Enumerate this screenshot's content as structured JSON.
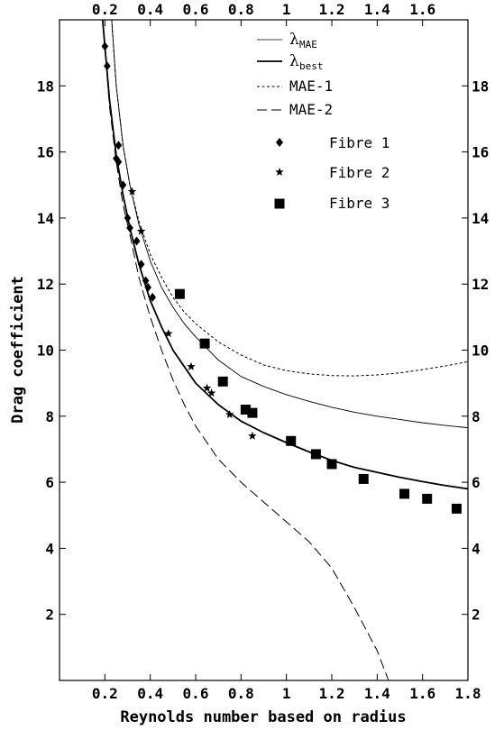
{
  "chart_data": {
    "type": "scatter",
    "xlabel": "Reynolds number based on radius",
    "ylabel": "Drag coefficient",
    "xlim": [
      0,
      1.8
    ],
    "ylim": [
      0,
      20
    ],
    "x_ticks": [
      0.2,
      0.4,
      0.6,
      0.8,
      1,
      1.2,
      1.4,
      1.6,
      1.8
    ],
    "x_tick_labels": [
      "0.2",
      "0.4",
      "0.6",
      "0.8",
      "1",
      "1.2",
      "1.4",
      "1.6",
      "1.8"
    ],
    "top_x_ticks": [
      0.2,
      0.4,
      0.6,
      0.8,
      1,
      1.2,
      1.4,
      1.6
    ],
    "top_x_tick_labels": [
      "0.2",
      "0.4",
      "0.6",
      "0.8",
      "1",
      "1.2",
      "1.4",
      "1.6"
    ],
    "y_ticks": [
      2,
      4,
      6,
      8,
      10,
      12,
      14,
      16,
      18
    ],
    "y_tick_labels": [
      "2",
      "4",
      "6",
      "8",
      "10",
      "12",
      "14",
      "16",
      "18"
    ],
    "grid": false,
    "legend_position": "top-right",
    "legend": {
      "lambda_symbol": "λ",
      "mae_sub": "MAE",
      "best_sub": "best",
      "mae1": "MAE-1",
      "mae2": "MAE-2",
      "fibre1": "Fibre 1",
      "fibre2": "Fibre 2",
      "fibre3": "Fibre 3"
    },
    "curves": [
      {
        "key": "lambda_mae",
        "style": "thin-solid",
        "x": [
          0.23,
          0.25,
          0.28,
          0.31,
          0.35,
          0.4,
          0.45,
          0.5,
          0.55,
          0.6,
          0.7,
          0.8,
          0.9,
          1.0,
          1.1,
          1.2,
          1.3,
          1.4,
          1.5,
          1.6,
          1.7,
          1.8
        ],
        "y": [
          20.0,
          18.0,
          16.2,
          15.0,
          13.8,
          12.7,
          11.9,
          11.3,
          10.8,
          10.4,
          9.7,
          9.2,
          8.9,
          8.65,
          8.45,
          8.27,
          8.12,
          8.0,
          7.9,
          7.8,
          7.72,
          7.65
        ]
      },
      {
        "key": "lambda_best",
        "style": "thick-solid",
        "x": [
          0.19,
          0.2,
          0.22,
          0.25,
          0.28,
          0.31,
          0.35,
          0.4,
          0.45,
          0.5,
          0.55,
          0.6,
          0.7,
          0.8,
          0.9,
          1.0,
          1.1,
          1.2,
          1.3,
          1.4,
          1.5,
          1.6,
          1.7,
          1.8
        ],
        "y": [
          20.0,
          19.2,
          17.6,
          15.9,
          14.7,
          13.7,
          12.6,
          11.5,
          10.7,
          10.0,
          9.5,
          9.0,
          8.35,
          7.85,
          7.5,
          7.2,
          6.92,
          6.66,
          6.45,
          6.3,
          6.15,
          6.02,
          5.9,
          5.8
        ]
      },
      {
        "key": "mae1",
        "style": "short-dash",
        "x": [
          0.23,
          0.25,
          0.28,
          0.31,
          0.35,
          0.4,
          0.45,
          0.5,
          0.55,
          0.6,
          0.7,
          0.8,
          0.9,
          1.0,
          1.1,
          1.2,
          1.3,
          1.4,
          1.5,
          1.6,
          1.7,
          1.8
        ],
        "y": [
          20.0,
          18.0,
          16.2,
          15.0,
          13.9,
          12.9,
          12.2,
          11.6,
          11.15,
          10.8,
          10.25,
          9.85,
          9.55,
          9.38,
          9.28,
          9.23,
          9.22,
          9.25,
          9.31,
          9.41,
          9.52,
          9.65
        ]
      },
      {
        "key": "mae2",
        "style": "long-dash",
        "x": [
          0.19,
          0.2,
          0.22,
          0.25,
          0.28,
          0.31,
          0.35,
          0.4,
          0.45,
          0.5,
          0.55,
          0.6,
          0.7,
          0.8,
          0.9,
          1.0,
          1.1,
          1.2,
          1.3,
          1.4,
          1.45
        ],
        "y": [
          20.0,
          19.2,
          17.4,
          15.7,
          14.4,
          13.5,
          12.2,
          11.0,
          10.0,
          9.1,
          8.35,
          7.7,
          6.7,
          6.0,
          5.4,
          4.8,
          4.2,
          3.4,
          2.2,
          0.9,
          0.0
        ]
      }
    ],
    "series": [
      {
        "name": "Fibre 1",
        "marker": "diamond",
        "x": [
          0.2,
          0.21,
          0.25,
          0.26,
          0.26,
          0.28,
          0.3,
          0.31,
          0.34,
          0.36,
          0.38,
          0.39,
          0.41
        ],
        "y": [
          19.2,
          18.6,
          15.8,
          15.7,
          16.2,
          15.0,
          14.0,
          13.7,
          13.3,
          12.6,
          12.1,
          11.9,
          11.6
        ]
      },
      {
        "name": "Fibre 2",
        "marker": "star",
        "x": [
          0.32,
          0.36,
          0.48,
          0.58,
          0.65,
          0.67,
          0.75,
          0.85
        ],
        "y": [
          14.8,
          13.6,
          10.5,
          9.5,
          8.85,
          8.7,
          8.05,
          7.4
        ]
      },
      {
        "name": "Fibre 3",
        "marker": "square",
        "x": [
          0.53,
          0.64,
          0.72,
          0.82,
          0.85,
          1.02,
          1.13,
          1.2,
          1.34,
          1.52,
          1.62,
          1.75
        ],
        "y": [
          11.7,
          10.2,
          9.05,
          8.2,
          8.1,
          7.25,
          6.85,
          6.55,
          6.1,
          5.65,
          5.5,
          5.2
        ]
      }
    ]
  }
}
